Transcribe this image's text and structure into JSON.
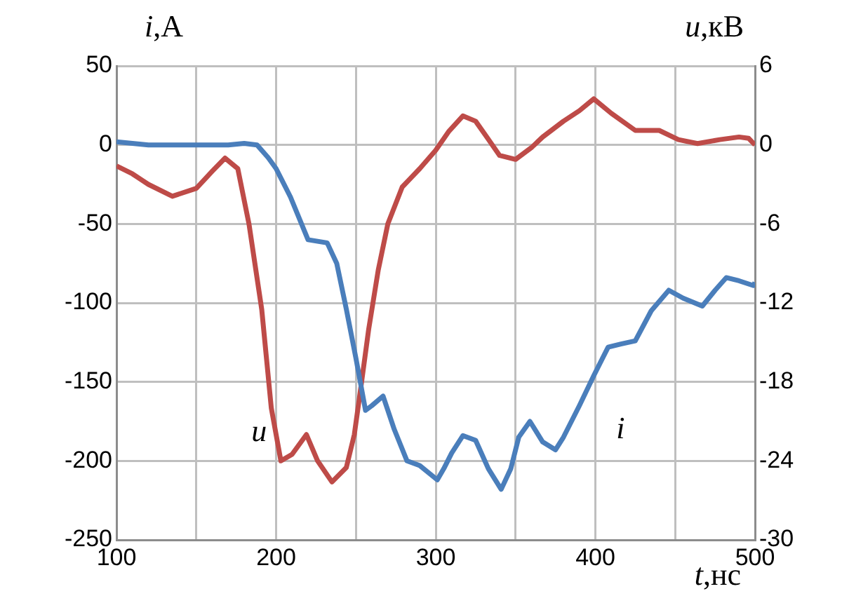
{
  "chart_data": {
    "type": "line",
    "xlabel": "t,нс",
    "ylabel": "i,A",
    "y2label": "u,кВ",
    "xlim": [
      100,
      500
    ],
    "xticks": [
      100,
      {
        "value": 150,
        "label": null
      },
      200,
      {
        "value": 250,
        "label": null
      },
      300,
      {
        "value": 350,
        "label": null
      },
      400,
      {
        "value": 450,
        "label": null
      },
      500
    ],
    "ylim": [
      -250,
      50
    ],
    "yticks": [
      -250,
      -200,
      -150,
      -100,
      -50,
      0,
      50
    ],
    "y2lim": [
      -30,
      6
    ],
    "y2ticks": [
      -30,
      -24,
      -18,
      -12,
      -6,
      0,
      6
    ],
    "grid": true,
    "legend": false,
    "marker": "none",
    "line_style": "solid",
    "series": [
      {
        "name": "i",
        "color": "#4a7ebb",
        "x": [
          100,
          120,
          150,
          170,
          180,
          188,
          195,
          200,
          209,
          220,
          232,
          238,
          244,
          250,
          256,
          260,
          267,
          274,
          282,
          290,
          301,
          305,
          310,
          317,
          325,
          333,
          341,
          347,
          352,
          359,
          367,
          375,
          380,
          390,
          399,
          408,
          416,
          425,
          435,
          446,
          455,
          467,
          475,
          482,
          490,
          499,
          500
        ],
        "values": [
          2,
          0,
          0,
          0,
          1,
          0,
          -8,
          -15,
          -33,
          -60,
          -62,
          -75,
          -104,
          -135,
          -168,
          -165,
          -159,
          -180,
          -200,
          -203,
          -212,
          -205,
          -195,
          -184,
          -187,
          -205,
          -218,
          -205,
          -185,
          -175,
          -188,
          -193,
          -185,
          -165,
          -146,
          -128,
          -126,
          -124,
          -105,
          -92,
          -97,
          -102,
          -92,
          -84,
          -86,
          -89,
          -87
        ]
      },
      {
        "name": "u",
        "color": "#be4b48",
        "axis": "y2",
        "x": [
          100,
          110,
          120,
          135,
          150,
          160,
          168,
          176,
          183,
          191,
          197,
          203,
          210,
          219,
          226,
          235,
          244,
          249,
          253,
          258,
          264,
          270,
          279,
          290,
          300,
          308,
          317,
          325,
          332,
          340,
          350,
          360,
          367,
          380,
          390,
          399,
          410,
          425,
          440,
          452,
          464,
          478,
          490,
          496,
          500
        ],
        "values": [
          -1.6,
          -2.2,
          -3,
          -3.9,
          -3.3,
          -2,
          -1,
          -1.8,
          -6,
          -12.5,
          -20,
          -24,
          -23.5,
          -22,
          -24,
          -25.6,
          -24.5,
          -22,
          -18.5,
          -14,
          -9.5,
          -6,
          -3.2,
          -1.8,
          -0.4,
          1,
          2.2,
          1.8,
          0.6,
          -0.8,
          -1.1,
          -0.2,
          0.6,
          1.8,
          2.6,
          3.5,
          2.4,
          1.1,
          1.1,
          0.4,
          0.1,
          0.4,
          0.6,
          0.5,
          0
        ]
      }
    ]
  }
}
